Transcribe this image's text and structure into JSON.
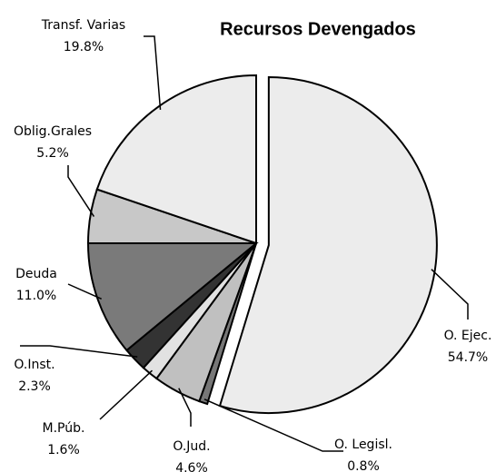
{
  "chart_data": {
    "type": "pie",
    "title": "Recursos Devengados",
    "categories": [
      "O. Ejec.",
      "O. Legisl.",
      "O.Jud.",
      "M.Púb.",
      "O.Inst.",
      "Deuda",
      "Oblig.Grales",
      "Transf. Varias"
    ],
    "values": [
      54.7,
      0.8,
      4.6,
      1.6,
      2.3,
      11.0,
      5.2,
      19.8
    ],
    "value_labels": [
      "54.7%",
      "0.8%",
      "4.6%",
      "1.6%",
      "2.3%",
      "11.0%",
      "5.2%",
      "19.8%"
    ],
    "colors": [
      "#ececec",
      "#777777",
      "#c0c0c0",
      "#e2e2e2",
      "#333333",
      "#7a7a7a",
      "#c8c8c8",
      "#ececec"
    ]
  }
}
